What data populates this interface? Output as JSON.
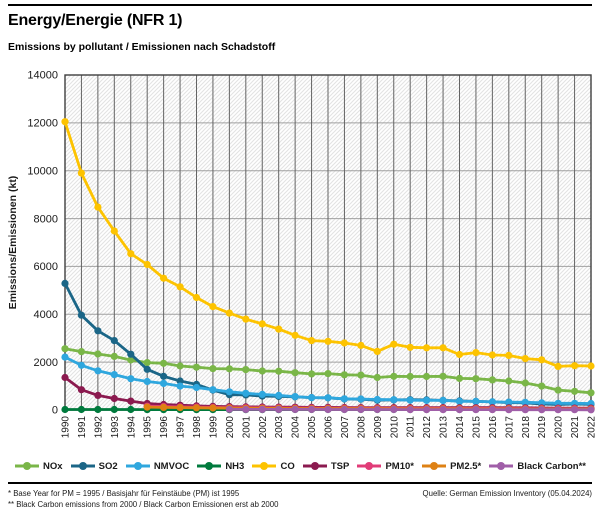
{
  "footnotes": {
    "line1": "* Base Year for PM = 1995 / Basisjahr für Feinstäube (PM) ist 1995",
    "line2": "** Black Carbon emissions from 2000 / Black Carbon Emissionen erst ab 2000",
    "source": "Quelle: German Emission Inventory (05.04.2024)"
  },
  "chart_data": {
    "type": "line",
    "title": "Energy/Energie (NFR 1)",
    "subtitle": "Emissions by pollutant / Emissionen nach Schadstoff",
    "xlabel": "",
    "ylabel": "Emissions/Emissionen (kt)",
    "ylim": [
      0,
      14000
    ],
    "ytick_step": 2000,
    "grid": true,
    "background": "diagonal-hatch",
    "legend_position": "bottom",
    "x": [
      "1990",
      "1991",
      "1992",
      "1993",
      "1994",
      "1995",
      "1996",
      "1997",
      "1998",
      "1999",
      "2000",
      "2001",
      "2002",
      "2003",
      "2004",
      "2005",
      "2006",
      "2007",
      "2008",
      "2009",
      "2010",
      "2011",
      "2012",
      "2013",
      "2014",
      "2015",
      "2016",
      "2017",
      "2018",
      "2019",
      "2020",
      "2021",
      "2022"
    ],
    "series": [
      {
        "name": "NOx",
        "color": "#7AB648",
        "values": [
          2560,
          2440,
          2340,
          2240,
          2090,
          1980,
          1950,
          1840,
          1790,
          1730,
          1720,
          1690,
          1630,
          1620,
          1560,
          1510,
          1520,
          1470,
          1460,
          1360,
          1410,
          1400,
          1400,
          1410,
          1320,
          1310,
          1260,
          1210,
          1130,
          1000,
          830,
          780,
          720
        ]
      },
      {
        "name": "SO2",
        "color": "#1B6687",
        "values": [
          5290,
          3960,
          3310,
          2900,
          2330,
          1700,
          1410,
          1210,
          1070,
          830,
          640,
          630,
          580,
          570,
          550,
          520,
          510,
          460,
          450,
          410,
          420,
          430,
          420,
          400,
          380,
          360,
          340,
          310,
          300,
          250,
          230,
          250,
          240
        ]
      },
      {
        "name": "NMVOC",
        "color": "#2FA7DE",
        "values": [
          2210,
          1870,
          1640,
          1480,
          1310,
          1190,
          1110,
          1000,
          940,
          850,
          760,
          700,
          650,
          610,
          560,
          520,
          510,
          470,
          460,
          440,
          430,
          410,
          400,
          400,
          360,
          360,
          340,
          330,
          320,
          300,
          280,
          280,
          270
        ]
      },
      {
        "name": "NH3",
        "color": "#007A3D",
        "values": [
          20,
          20,
          19,
          19,
          19,
          18,
          18,
          18,
          18,
          18,
          18,
          18,
          18,
          18,
          19,
          19,
          20,
          20,
          20,
          20,
          21,
          21,
          22,
          22,
          22,
          23,
          23,
          24,
          24,
          24,
          23,
          24,
          24
        ]
      },
      {
        "name": "CO",
        "color": "#FDC300",
        "values": [
          12050,
          9900,
          8480,
          7480,
          6530,
          6080,
          5510,
          5150,
          4700,
          4320,
          4050,
          3800,
          3600,
          3380,
          3120,
          2900,
          2870,
          2800,
          2700,
          2450,
          2750,
          2620,
          2600,
          2600,
          2320,
          2400,
          2300,
          2280,
          2150,
          2100,
          1820,
          1850,
          1840
        ]
      },
      {
        "name": "TSP",
        "color": "#8B1A4F",
        "values": [
          1360,
          850,
          610,
          480,
          370,
          270,
          230,
          200,
          170,
          150,
          140,
          130,
          125,
          120,
          115,
          110,
          110,
          105,
          100,
          100,
          100,
          100,
          100,
          100,
          95,
          95,
          95,
          90,
          90,
          85,
          80,
          80,
          80
        ]
      },
      {
        "name": "PM10*",
        "color": "#E13C78",
        "values": [
          null,
          null,
          null,
          null,
          null,
          160,
          145,
          130,
          120,
          110,
          100,
          95,
          90,
          88,
          85,
          82,
          80,
          78,
          76,
          74,
          73,
          72,
          71,
          70,
          68,
          67,
          66,
          64,
          62,
          60,
          57,
          57,
          56
        ]
      },
      {
        "name": "PM2.5*",
        "color": "#DE8114",
        "values": [
          null,
          null,
          null,
          null,
          null,
          120,
          110,
          100,
          92,
          85,
          78,
          73,
          69,
          66,
          63,
          60,
          58,
          55,
          53,
          51,
          50,
          48,
          47,
          46,
          44,
          43,
          42,
          40,
          38,
          36,
          34,
          34,
          33
        ]
      },
      {
        "name": "Black Carbon**",
        "color": "#A05EA8",
        "values": [
          null,
          null,
          null,
          null,
          null,
          null,
          null,
          null,
          null,
          null,
          28,
          27,
          26,
          25,
          24,
          23,
          22,
          21,
          20,
          19,
          19,
          18,
          17,
          17,
          16,
          15,
          15,
          14,
          13,
          12,
          11,
          11,
          10
        ]
      }
    ]
  }
}
